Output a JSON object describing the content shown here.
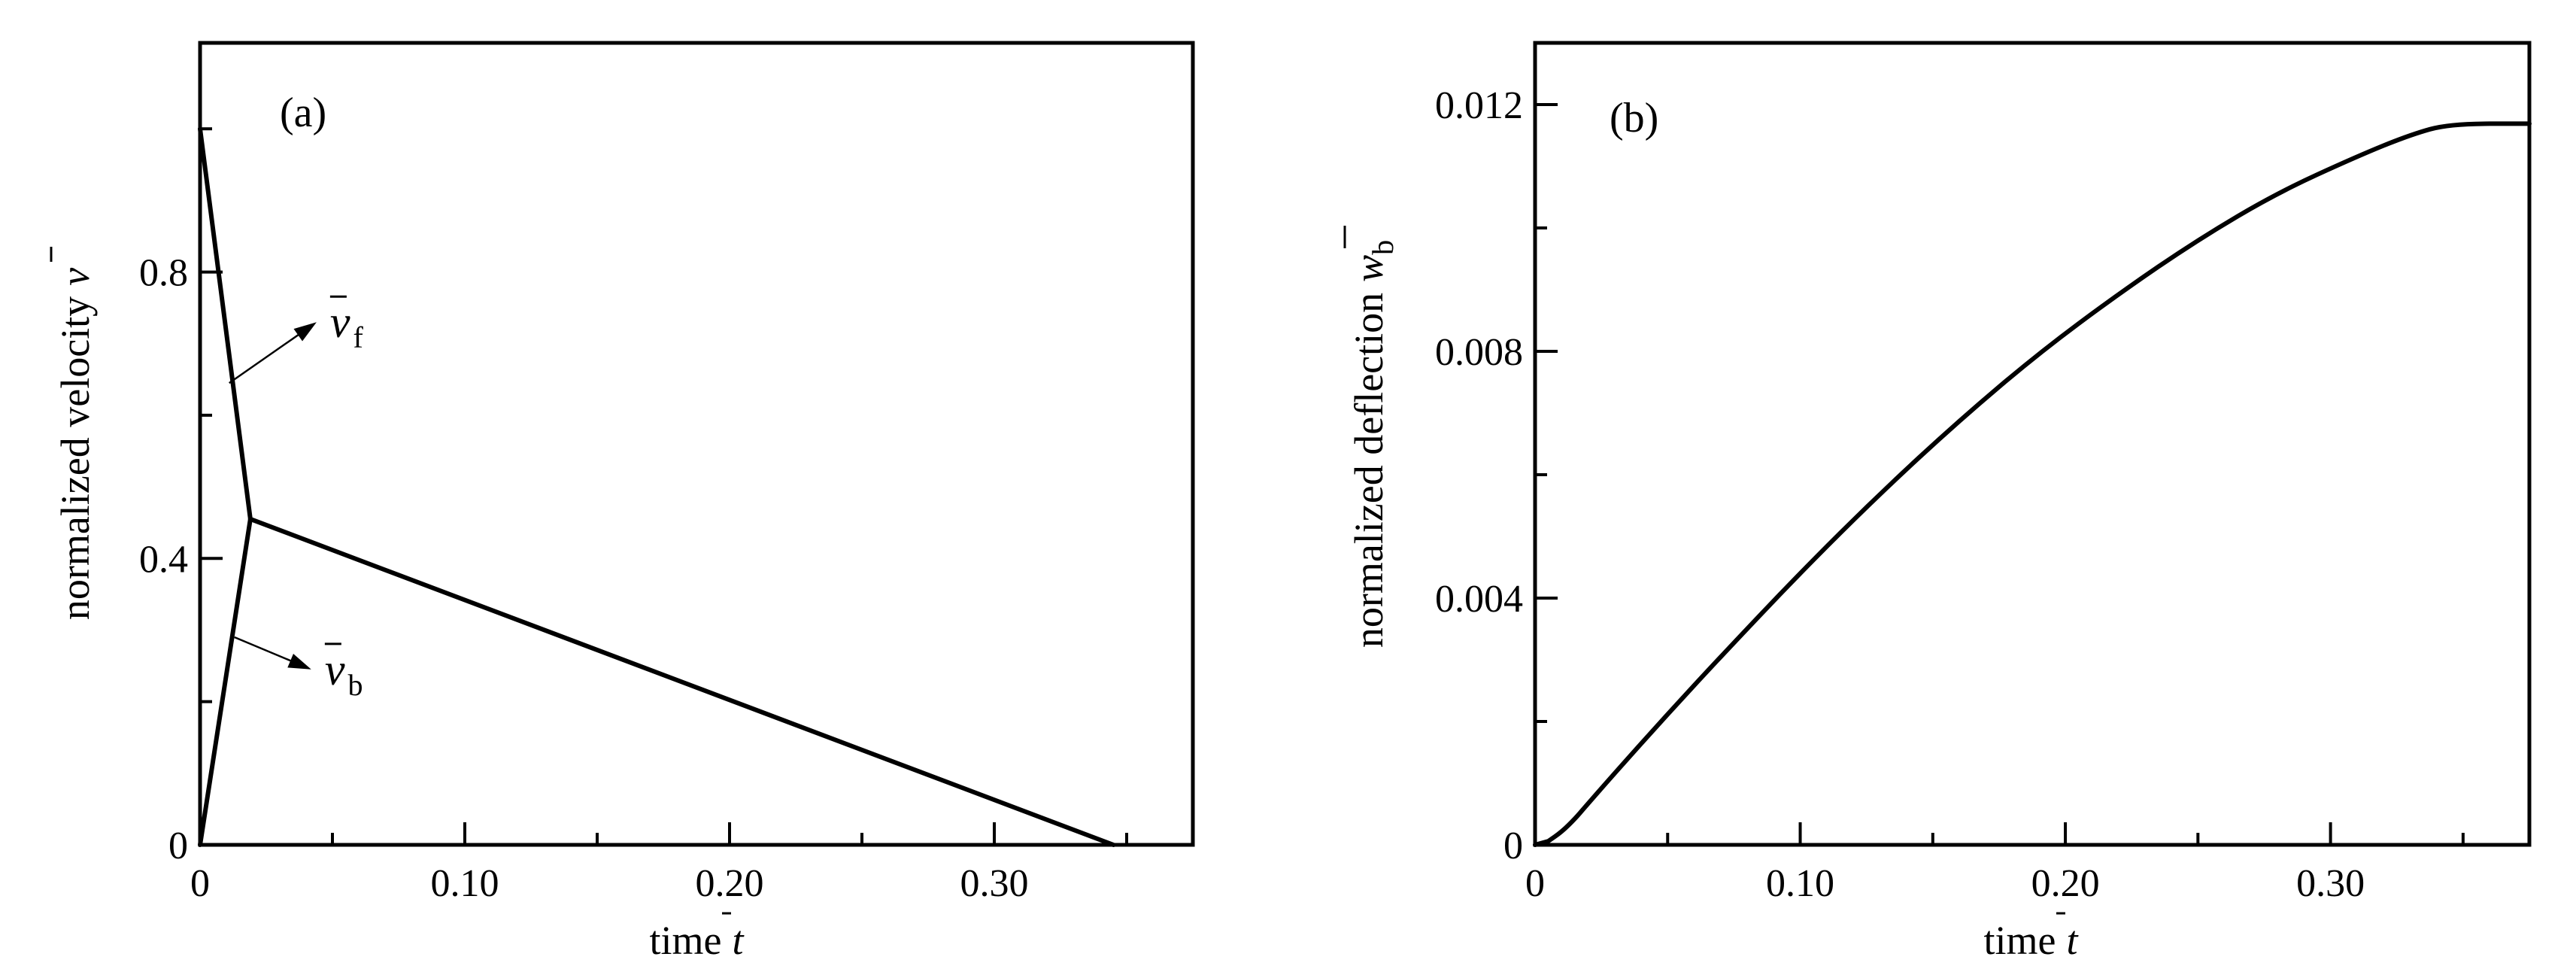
{
  "chart_data": [
    {
      "type": "line",
      "panel_label": "(a)",
      "xlabel": "time",
      "xlabel_symbol": "t",
      "ylabel": "normalized velocity",
      "ylabel_symbol": "v",
      "xlim": [
        0,
        0.375
      ],
      "ylim": [
        0,
        1.12
      ],
      "x_ticks": [
        0,
        0.1,
        0.2,
        0.3
      ],
      "x_tick_labels": [
        "0",
        "0.10",
        "0.20",
        "0.30"
      ],
      "x_minor_ticks": [
        0.05,
        0.15,
        0.25,
        0.35
      ],
      "y_ticks": [
        0,
        0.4,
        0.8
      ],
      "y_tick_labels": [
        "0",
        "0.4",
        "0.8"
      ],
      "y_minor_ticks": [
        0.2,
        0.6,
        1.0
      ],
      "grid": false,
      "series": [
        {
          "label": "v",
          "subscript": "f",
          "x": [
            0,
            0.019
          ],
          "y": [
            1.0,
            0.455
          ]
        },
        {
          "label": "v",
          "subscript": "b",
          "x": [
            0,
            0.019
          ],
          "y": [
            0,
            0.455
          ]
        },
        {
          "x": [
            0.019,
            0.345
          ],
          "y": [
            0.455,
            0
          ]
        }
      ],
      "annotations": [
        {
          "target_series": 0,
          "text": "v",
          "subscript": "f",
          "point": [
            0.011,
            0.645
          ],
          "arrow_to": [
            0.044,
            0.73
          ]
        },
        {
          "target_series": 1,
          "text": "v",
          "subscript": "b",
          "point": [
            0.013,
            0.29
          ],
          "arrow_to": [
            0.042,
            0.245
          ]
        }
      ]
    },
    {
      "type": "line",
      "panel_label": "(b)",
      "xlabel": "time",
      "xlabel_symbol": "t",
      "ylabel": "normalized deflection",
      "ylabel_symbol": "w",
      "ylabel_subscript": "b",
      "xlim": [
        0,
        0.375
      ],
      "ylim": [
        0,
        0.013
      ],
      "x_ticks": [
        0,
        0.1,
        0.2,
        0.3
      ],
      "x_tick_labels": [
        "0",
        "0.10",
        "0.20",
        "0.30"
      ],
      "x_minor_ticks": [
        0.05,
        0.15,
        0.25,
        0.35
      ],
      "y_ticks": [
        0,
        0.004,
        0.008,
        0.012
      ],
      "y_tick_labels": [
        "0",
        "0.004",
        "0.008",
        "0.012"
      ],
      "y_minor_ticks": [
        0.002,
        0.006,
        0.01
      ],
      "grid": false,
      "series": [
        {
          "x": [
            0,
            0.005,
            0.01,
            0.015,
            0.019,
            0.03,
            0.05,
            0.07,
            0.1,
            0.13,
            0.16,
            0.19,
            0.22,
            0.25,
            0.28,
            0.31,
            0.33,
            0.345,
            0.375
          ],
          "y": [
            0,
            6e-05,
            0.00021,
            0.00042,
            0.00062,
            0.00116,
            0.00212,
            0.00305,
            0.00441,
            0.00569,
            0.00688,
            0.00797,
            0.00893,
            0.00981,
            0.01057,
            0.01116,
            0.01151,
            0.01169,
            0.01169
          ]
        }
      ]
    }
  ]
}
